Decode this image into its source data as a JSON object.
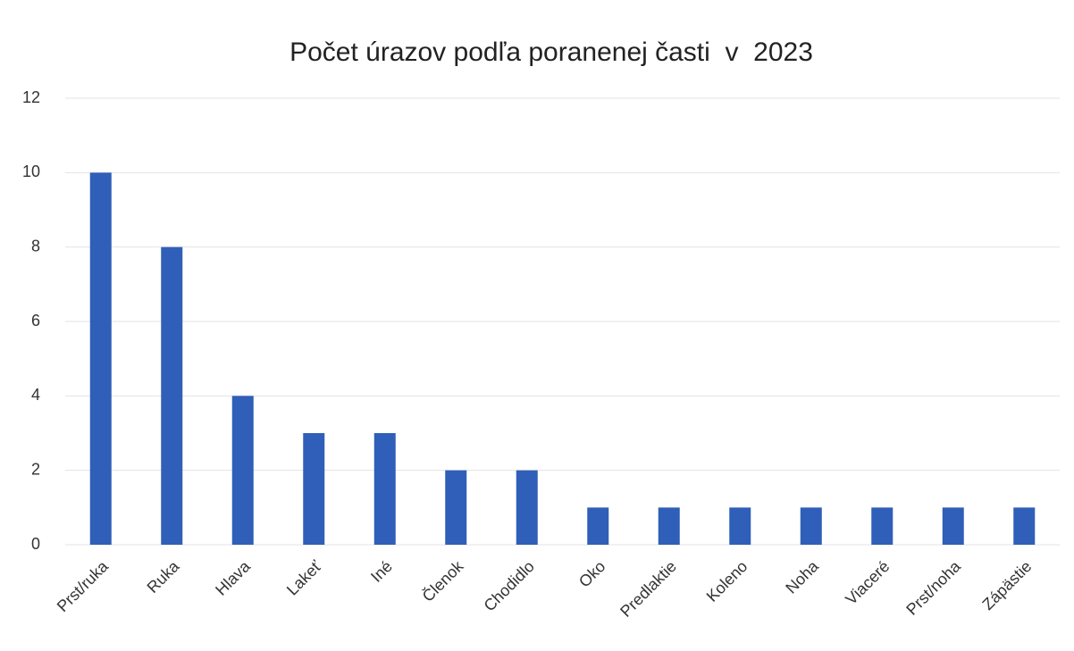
{
  "chart_data": {
    "type": "bar",
    "title": "Počet úrazov podľa poranenej časti  v  2023",
    "categories": [
      "Prst/ruka",
      "Ruka",
      "Hlava",
      "Lakeť",
      "Iné",
      "Členok",
      "Chodidlo",
      "Oko",
      "Predlaktie",
      "Koleno",
      "Noha",
      "Viaceré",
      "Prst/noha",
      "Zápästie"
    ],
    "values": [
      10,
      8,
      4,
      3,
      3,
      2,
      2,
      1,
      1,
      1,
      1,
      1,
      1,
      1
    ],
    "color": "#2f5fb8",
    "ylim": [
      0,
      12
    ],
    "yticks": [
      0,
      2,
      4,
      6,
      8,
      10,
      12
    ],
    "grid": true
  }
}
